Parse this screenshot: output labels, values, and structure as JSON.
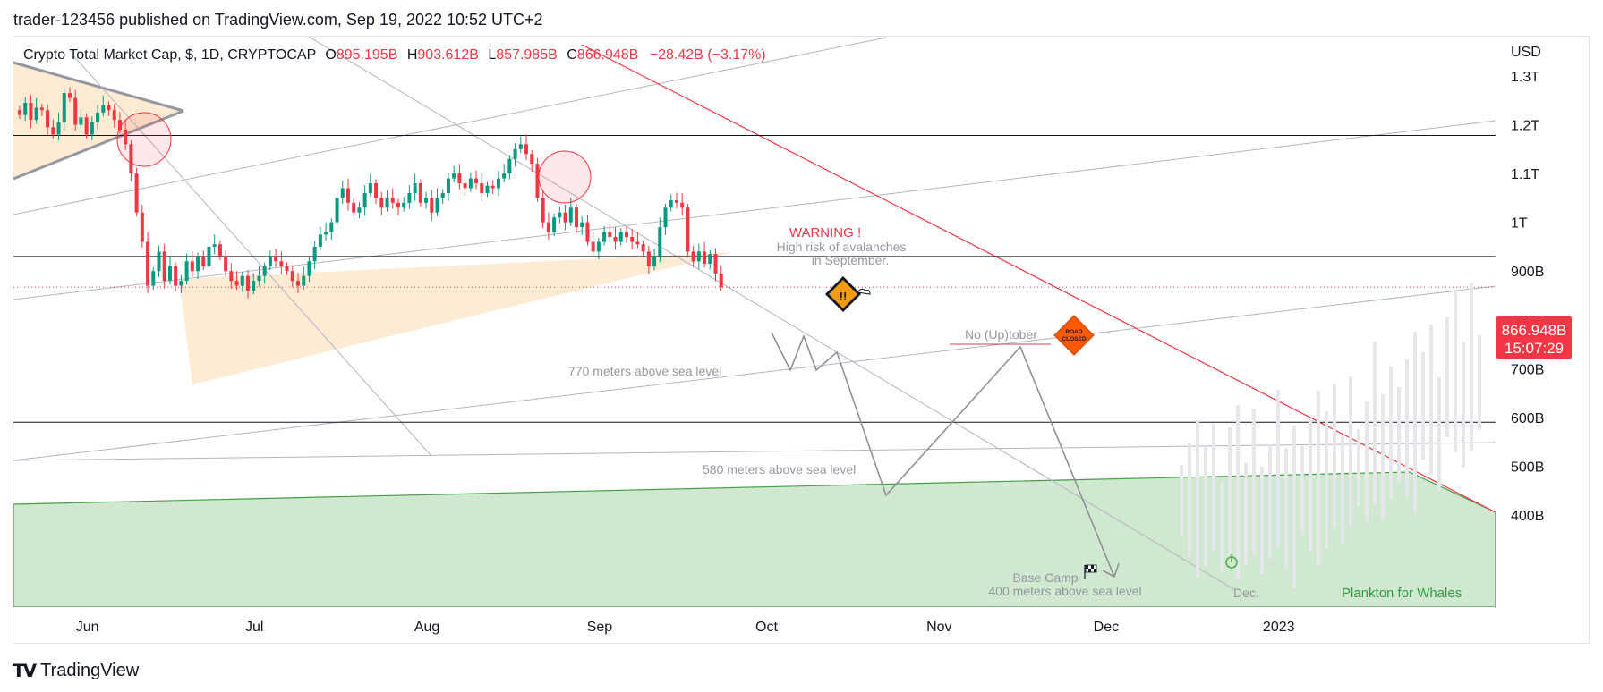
{
  "header": {
    "published_line": "trader-123456 published on TradingView.com, Sep 19, 2022 10:52 UTC+2"
  },
  "legend": {
    "symbol": "Crypto Total Market Cap, $, 1D, CRYPTOCAP",
    "o_label": "O",
    "o_value": "895.195B",
    "h_label": "H",
    "h_value": "903.612B",
    "l_label": "L",
    "l_value": "857.985B",
    "c_label": "C",
    "c_value": "866.948B",
    "change": "−28.42B (−3.17%)"
  },
  "price_scale": {
    "currency": "USD",
    "last_price": "866.948B",
    "countdown": "15:07:29"
  },
  "annotations": {
    "warning_title": "WARNING !",
    "warning_line1": "High risk of avalanches",
    "warning_line2": "in September.",
    "no_uptober": "No (Up)tober",
    "road_closed": "ROAD CLOSED",
    "level_770": "770  meters above sea level",
    "level_580": "580 meters above sea level",
    "base_camp": "Base Camp",
    "level_400": "400 meters above sea level",
    "dec_label": "Dec.",
    "plankton": "Plankton for Whales"
  },
  "footer": {
    "brand": "TradingView"
  },
  "colors": {
    "up": "#089981",
    "down": "#f23645",
    "green_zone": "#cfe8cf",
    "triangle_fill": "#fdebd3",
    "red_trend": "#f23645",
    "annotation_grey": "#9598a1"
  },
  "chart_data": {
    "type": "candlestick",
    "title": "Crypto Total Market Cap, $, 1D, CRYPTOCAP",
    "ylabel": "USD",
    "xlabel": "",
    "ylim": [
      370,
      1370
    ],
    "y_ticks": [
      {
        "value": 1300,
        "label": "1.3T"
      },
      {
        "value": 1200,
        "label": "1.2T"
      },
      {
        "value": 1100,
        "label": "1.1T"
      },
      {
        "value": 1000,
        "label": "1T"
      },
      {
        "value": 900,
        "label": "900B"
      },
      {
        "value": 800,
        "label": "800B"
      },
      {
        "value": 700,
        "label": "700B"
      },
      {
        "value": 600,
        "label": "600B"
      },
      {
        "value": 500,
        "label": "500B"
      },
      {
        "value": 400,
        "label": "400B"
      }
    ],
    "x_ticks": [
      "Jun",
      "Jul",
      "Aug",
      "Sep",
      "Oct",
      "Nov",
      "Dec",
      "2023"
    ],
    "x_tick_days": [
      13,
      43,
      74,
      105,
      135,
      166,
      196,
      227
    ],
    "horizontal_levels": [
      1178,
      930,
      590
    ],
    "current_price": 866.948,
    "closes": [
      1220,
      1245,
      1210,
      1235,
      1230,
      1195,
      1180,
      1205,
      1265,
      1255,
      1200,
      1215,
      1180,
      1205,
      1225,
      1240,
      1230,
      1210,
      1190,
      1160,
      1100,
      1020,
      960,
      870,
      900,
      940,
      880,
      910,
      870,
      880,
      920,
      900,
      930,
      910,
      950,
      955,
      930,
      900,
      880,
      870,
      890,
      860,
      880,
      890,
      910,
      930,
      920,
      910,
      900,
      880,
      870,
      890,
      920,
      950,
      975,
      980,
      1000,
      1050,
      1070,
      1040,
      1020,
      1030,
      1060,
      1080,
      1050,
      1030,
      1050,
      1040,
      1030,
      1040,
      1060,
      1080,
      1040,
      1050,
      1020,
      1050,
      1060,
      1090,
      1100,
      1080,
      1070,
      1090,
      1080,
      1060,
      1075,
      1070,
      1090,
      1100,
      1130,
      1150,
      1160,
      1140,
      1120,
      1050,
      1000,
      980,
      1010,
      1020,
      1000,
      1030,
      990,
      1000,
      960,
      940,
      960,
      980,
      970,
      960,
      980,
      970,
      960,
      955,
      940,
      910,
      930,
      990,
      1030,
      1045,
      1040,
      1030,
      940,
      920,
      940,
      915,
      935,
      895,
      866.948
    ],
    "ohlc_last": {
      "open": 895.195,
      "high": 903.612,
      "low": 857.985,
      "close": 866.948,
      "change": -28.42,
      "change_pct": -3.17
    }
  }
}
